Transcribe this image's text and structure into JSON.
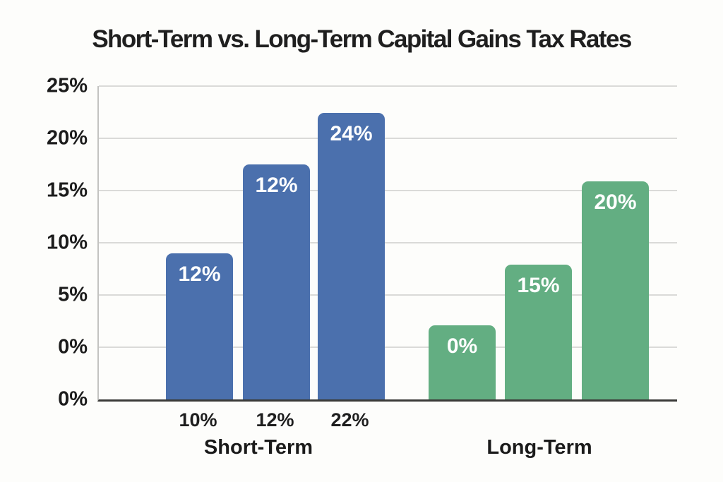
{
  "colors": {
    "background": "#fdfdfb",
    "short_term_bar": "#4b70ad",
    "long_term_bar": "#63ae82",
    "gridline": "#dadad8",
    "axis_line": "#3a3a38",
    "y_axis_border": "#c3c3c1",
    "title_text": "#1f1f1f",
    "tick_text": "#1c1c1c",
    "bar_label_text": "#ffffff"
  },
  "chart_data": {
    "type": "bar",
    "title": "Short-Term vs. Long-Term Capital Gains Tax Rates",
    "xlabel": "",
    "ylabel": "",
    "grid": true,
    "legend": false,
    "y_axis": {
      "tick_labels": [
        "25%",
        "20%",
        "15%",
        "10%",
        "5%",
        "0%",
        "0%"
      ],
      "ticks_evenly_spaced": true,
      "note": "seven labels; bottom axis row repeats 0%"
    },
    "groups": [
      {
        "label": "Short-Term",
        "color": "#4b70ad",
        "bars": [
          {
            "x_tick": "10%",
            "bar_label": "12%",
            "height_frac": 0.466
          },
          {
            "x_tick": "12%",
            "bar_label": "12%",
            "height_frac": 0.75
          },
          {
            "x_tick": "22%",
            "bar_label": "24%",
            "height_frac": 0.914
          }
        ]
      },
      {
        "label": "Long-Term",
        "color": "#63ae82",
        "bars": [
          {
            "x_tick": "",
            "bar_label": "0%",
            "height_frac": 0.236
          },
          {
            "x_tick": "",
            "bar_label": "15%",
            "height_frac": 0.43
          },
          {
            "x_tick": "",
            "bar_label": "20%",
            "height_frac": 0.696
          }
        ]
      }
    ]
  }
}
